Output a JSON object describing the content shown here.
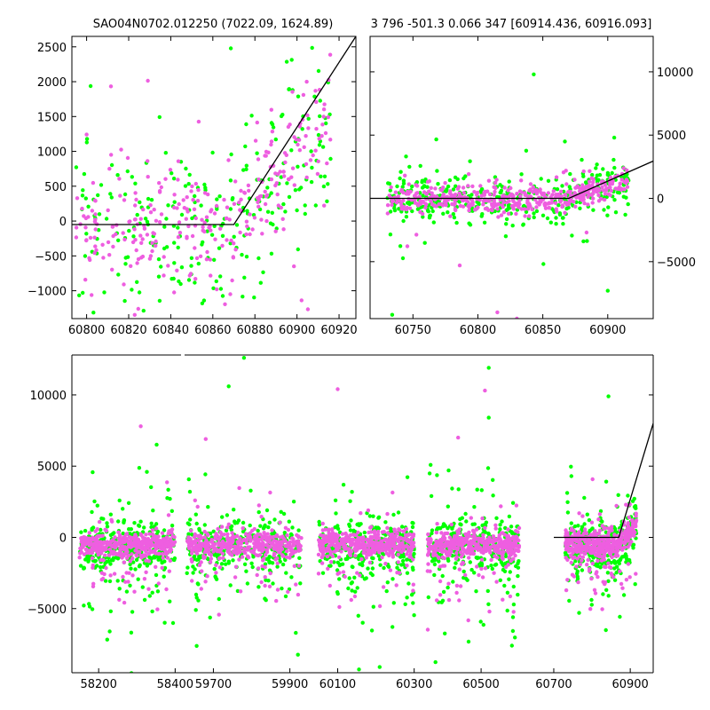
{
  "chart_data": [
    {
      "type": "scatter",
      "title": "SAO04N0702.012250 (7022.09, 1624.89)",
      "xlim": [
        60793,
        60928
      ],
      "ylim": [
        -1400,
        2650
      ],
      "xticks": [
        60800,
        60820,
        60840,
        60860,
        60880,
        60900,
        60920
      ],
      "yticks": [
        -1000,
        -500,
        0,
        500,
        1000,
        1500,
        2000,
        2500
      ],
      "y_axis_side": "left",
      "grid": false,
      "series": [
        {
          "color": "#00ff00",
          "x_range": [
            60795,
            60916
          ],
          "y_center": -50,
          "y_spread": 650,
          "trend": {
            "start": 60870,
            "slope": 30
          },
          "count": 260,
          "seed": 11
        },
        {
          "color": "#ee5ee0",
          "x_range": [
            60795,
            60916
          ],
          "y_center": -30,
          "y_spread": 400,
          "trend": {
            "start": 60870,
            "slope": 33
          },
          "count": 300,
          "seed": 23
        }
      ],
      "model_line": [
        [
          60793,
          -50
        ],
        [
          60870,
          -50
        ],
        [
          60928,
          2650
        ]
      ]
    },
    {
      "type": "scatter",
      "title": "3 796 -501.3 0.066 347 [60914.436, 60916.093]",
      "xlim": [
        60717,
        60935
      ],
      "ylim": [
        -9500,
        12800
      ],
      "xticks": [
        60750,
        60800,
        60850,
        60900
      ],
      "yticks": [
        -5000,
        0,
        5000,
        10000
      ],
      "y_axis_side": "right",
      "grid": false,
      "series": [
        {
          "color": "#00ff00",
          "x_range": [
            60730,
            60916
          ],
          "y_center": 0,
          "y_spread": 900,
          "trend": {
            "start": 60870,
            "slope": 30
          },
          "count": 380,
          "seed": 5
        },
        {
          "color": "#ee5ee0",
          "x_range": [
            60730,
            60916
          ],
          "y_center": -50,
          "y_spread": 500,
          "trend": {
            "start": 60870,
            "slope": 33
          },
          "count": 460,
          "seed": 9
        }
      ],
      "outliers": [
        {
          "x": 60843,
          "y": 9800,
          "color": "#00ff00"
        },
        {
          "x": 60734,
          "y": -9200,
          "color": "#00ff00"
        },
        {
          "x": 60905,
          "y": 4800,
          "color": "#00ff00"
        },
        {
          "x": 60867,
          "y": 4500,
          "color": "#00ff00"
        },
        {
          "x": 60900,
          "y": -7300,
          "color": "#00ff00"
        },
        {
          "x": 60786,
          "y": -5300,
          "color": "#ee5ee0"
        },
        {
          "x": 60815,
          "y": -9000,
          "color": "#ee5ee0"
        },
        {
          "x": 60830,
          "y": -9500,
          "color": "#ee5ee0"
        }
      ],
      "model_line": [
        [
          60717,
          0
        ],
        [
          60870,
          0
        ],
        [
          60935,
          2950
        ]
      ]
    },
    {
      "type": "scatter",
      "xlim_segments": [
        [
          58130,
          58420
        ],
        [
          59620,
          59960
        ],
        [
          60035,
          60330
        ],
        [
          60355,
          60630
        ],
        [
          60640,
          60960
        ]
      ],
      "ylim": [
        -9500,
        12800
      ],
      "xticks": [
        58200,
        58400,
        59700,
        59900,
        60100,
        60300,
        60500,
        60700,
        60900
      ],
      "yticks": [
        -5000,
        0,
        5000,
        10000
      ],
      "y_axis_side": "left",
      "grid": false,
      "groups": [
        {
          "x_range": [
            58150,
            58400
          ],
          "seed": 31
        },
        {
          "x_range": [
            59630,
            59930
          ],
          "seed": 37
        },
        {
          "x_range": [
            60050,
            60300
          ],
          "seed": 41
        },
        {
          "x_range": [
            60360,
            60600
          ],
          "seed": 43
        },
        {
          "x_range": [
            60730,
            60916
          ],
          "seed": 47
        }
      ],
      "series_colors": [
        "#00ff00",
        "#ee5ee0"
      ],
      "outliers": [
        {
          "x": 59780,
          "y": 12600,
          "color": "#00ff00"
        },
        {
          "x": 59740,
          "y": 10600,
          "color": "#00ff00"
        },
        {
          "x": 60520,
          "y": 11900,
          "color": "#00ff00"
        },
        {
          "x": 60100,
          "y": 10400,
          "color": "#ee5ee0"
        },
        {
          "x": 60510,
          "y": 10300,
          "color": "#ee5ee0"
        },
        {
          "x": 60843,
          "y": 9900,
          "color": "#00ff00"
        },
        {
          "x": 58310,
          "y": 7800,
          "color": "#ee5ee0"
        },
        {
          "x": 59680,
          "y": 6900,
          "color": "#ee5ee0"
        },
        {
          "x": 60440,
          "y": 7000,
          "color": "#ee5ee0"
        },
        {
          "x": 60520,
          "y": 8400,
          "color": "#00ff00"
        }
      ],
      "model_line": [
        [
          60700,
          0
        ],
        [
          60870,
          0
        ],
        [
          60960,
          8000
        ]
      ]
    }
  ]
}
